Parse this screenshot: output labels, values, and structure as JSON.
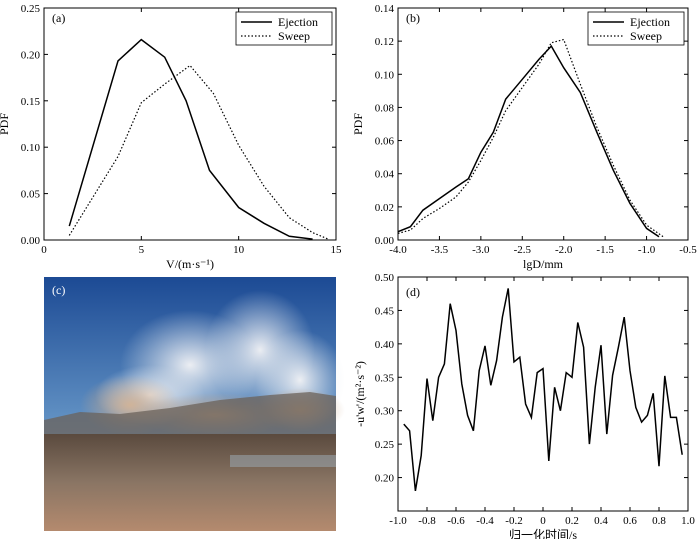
{
  "chart_data": [
    {
      "type": "line",
      "panel": "(a)",
      "xlabel": "V/(m·s⁻¹)",
      "ylabel": "PDF",
      "xlim": [
        0,
        15
      ],
      "ylim": [
        0,
        0.25
      ],
      "xticks": [
        0,
        5,
        10,
        15
      ],
      "yticks": [
        0.0,
        0.05,
        0.1,
        0.15,
        0.2,
        0.25
      ],
      "xtick_labels": [
        "0",
        "5",
        "10",
        "15"
      ],
      "ytick_labels": [
        "0.00",
        "0.05",
        "0.10",
        "0.15",
        "0.20",
        "0.25"
      ],
      "legend": "top-right",
      "series": [
        {
          "name": "Ejection",
          "style": "solid",
          "x": [
            1.3,
            3.8,
            5.0,
            6.2,
            7.3,
            8.5,
            10.0,
            11.3,
            12.6,
            13.8
          ],
          "y": [
            0.015,
            0.193,
            0.216,
            0.197,
            0.15,
            0.075,
            0.035,
            0.018,
            0.004,
            0.001
          ]
        },
        {
          "name": "Sweep",
          "style": "dotted",
          "x": [
            1.3,
            3.8,
            5.0,
            6.2,
            7.5,
            8.7,
            10.0,
            11.3,
            12.6,
            13.8,
            14.6
          ],
          "y": [
            0.005,
            0.09,
            0.148,
            0.168,
            0.188,
            0.158,
            0.102,
            0.058,
            0.024,
            0.008,
            0.001
          ]
        }
      ]
    },
    {
      "type": "line",
      "panel": "(b)",
      "xlabel": "lgD/mm",
      "ylabel": "PDF",
      "xlim": [
        -4.0,
        -0.5
      ],
      "ylim": [
        0,
        0.14
      ],
      "xticks": [
        -4.0,
        -3.5,
        -3.0,
        -2.5,
        -2.0,
        -1.5,
        -1.0,
        -0.5
      ],
      "yticks": [
        0.0,
        0.02,
        0.04,
        0.06,
        0.08,
        0.1,
        0.12,
        0.14
      ],
      "xtick_labels": [
        "-4.0",
        "-3.5",
        "-3.0",
        "-2.5",
        "-2.0",
        "-1.5",
        "-1.0",
        "-0.5"
      ],
      "ytick_labels": [
        "0.00",
        "0.02",
        "0.04",
        "0.06",
        "0.08",
        "0.10",
        "0.12",
        "0.14"
      ],
      "legend": "top-right",
      "series": [
        {
          "name": "Ejection",
          "style": "solid",
          "x": [
            -4.0,
            -3.85,
            -3.7,
            -3.5,
            -3.3,
            -3.15,
            -3.0,
            -2.85,
            -2.7,
            -2.5,
            -2.3,
            -2.15,
            -2.0,
            -1.8,
            -1.6,
            -1.4,
            -1.2,
            -1.0,
            -0.85
          ],
          "y": [
            0.005,
            0.008,
            0.018,
            0.025,
            0.032,
            0.037,
            0.053,
            0.065,
            0.085,
            0.097,
            0.109,
            0.117,
            0.104,
            0.089,
            0.065,
            0.042,
            0.022,
            0.007,
            0.002
          ]
        },
        {
          "name": "Sweep",
          "style": "dotted",
          "x": [
            -4.0,
            -3.85,
            -3.7,
            -3.5,
            -3.3,
            -3.15,
            -3.0,
            -2.85,
            -2.7,
            -2.5,
            -2.3,
            -2.15,
            -2.0,
            -1.8,
            -1.6,
            -1.4,
            -1.2,
            -1.0,
            -0.8
          ],
          "y": [
            0.004,
            0.006,
            0.013,
            0.019,
            0.026,
            0.035,
            0.048,
            0.062,
            0.078,
            0.092,
            0.106,
            0.119,
            0.121,
            0.094,
            0.068,
            0.045,
            0.024,
            0.009,
            0.002
          ]
        }
      ]
    },
    {
      "type": "line",
      "panel": "(d)",
      "xlabel": "归一化时间/s",
      "ylabel": "-u'w'/(m²·s⁻²)",
      "xlim": [
        -1.0,
        1.0
      ],
      "ylim": [
        0.15,
        0.5
      ],
      "xticks": [
        -1.0,
        -0.8,
        -0.6,
        -0.4,
        -0.2,
        0.0,
        0.2,
        0.4,
        0.6,
        0.8,
        1.0
      ],
      "yticks": [
        0.2,
        0.25,
        0.3,
        0.35,
        0.4,
        0.45,
        0.5
      ],
      "xtick_labels": [
        "-1.0",
        "-0.8",
        "-0.6",
        "-0.4",
        "-0.2",
        "0",
        "0.2",
        "0.4",
        "0.6",
        "0.8",
        "1.0"
      ],
      "ytick_labels": [
        "0.20",
        "0.25",
        "0.30",
        "0.35",
        "0.40",
        "0.45",
        "0.50"
      ],
      "series": [
        {
          "name": "",
          "x": [
            -0.96,
            -0.92,
            -0.88,
            -0.84,
            -0.8,
            -0.76,
            -0.72,
            -0.68,
            -0.64,
            -0.6,
            -0.56,
            -0.52,
            -0.48,
            -0.44,
            -0.4,
            -0.36,
            -0.32,
            -0.28,
            -0.24,
            -0.2,
            -0.16,
            -0.12,
            -0.08,
            -0.04,
            0.0,
            0.04,
            0.08,
            0.12,
            0.16,
            0.2,
            0.24,
            0.28,
            0.32,
            0.36,
            0.4,
            0.44,
            0.48,
            0.52,
            0.56,
            0.6,
            0.64,
            0.68,
            0.72,
            0.76,
            0.8,
            0.84,
            0.88,
            0.92,
            0.96
          ],
          "y": [
            0.28,
            0.27,
            0.18,
            0.233,
            0.348,
            0.285,
            0.35,
            0.37,
            0.46,
            0.42,
            0.34,
            0.293,
            0.27,
            0.36,
            0.397,
            0.338,
            0.375,
            0.44,
            0.483,
            0.373,
            0.38,
            0.31,
            0.29,
            0.357,
            0.363,
            0.225,
            0.335,
            0.3,
            0.357,
            0.35,
            0.432,
            0.395,
            0.25,
            0.335,
            0.398,
            0.265,
            0.353,
            0.395,
            0.44,
            0.36,
            0.305,
            0.283,
            0.293,
            0.326,
            0.217,
            0.352,
            0.29,
            0.29,
            0.234
          ]
        }
      ]
    }
  ],
  "photo": {
    "label": "(c)",
    "sky_top": "#1f4d96",
    "sky_bottom": "#6f9cc7",
    "dust": "#c9a788",
    "ground": "#7b6654"
  }
}
